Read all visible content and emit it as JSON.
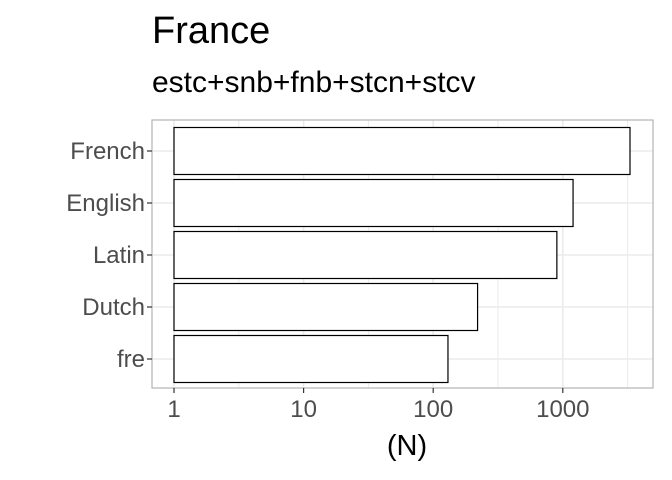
{
  "chart_data": {
    "type": "bar",
    "orientation": "horizontal",
    "title": "France",
    "subtitle": "estc+snb+fnb+stcn+stcv",
    "xlabel": "(N)",
    "ylabel": "",
    "x_scale": "log10",
    "xlim": [
      1,
      4200
    ],
    "x_ticks": [
      1,
      10,
      100,
      1000
    ],
    "x_tick_labels": [
      "1",
      "10",
      "100",
      "1000"
    ],
    "categories": [
      "French",
      "English",
      "Latin",
      "Dutch",
      "fre"
    ],
    "values": [
      3300,
      1200,
      900,
      220,
      130
    ],
    "grid": true,
    "legend": "none",
    "bar_fill": "#ffffff",
    "bar_stroke": "#000000",
    "grid_color": "#ebebeb",
    "panel_border": "#b3b3b3"
  }
}
